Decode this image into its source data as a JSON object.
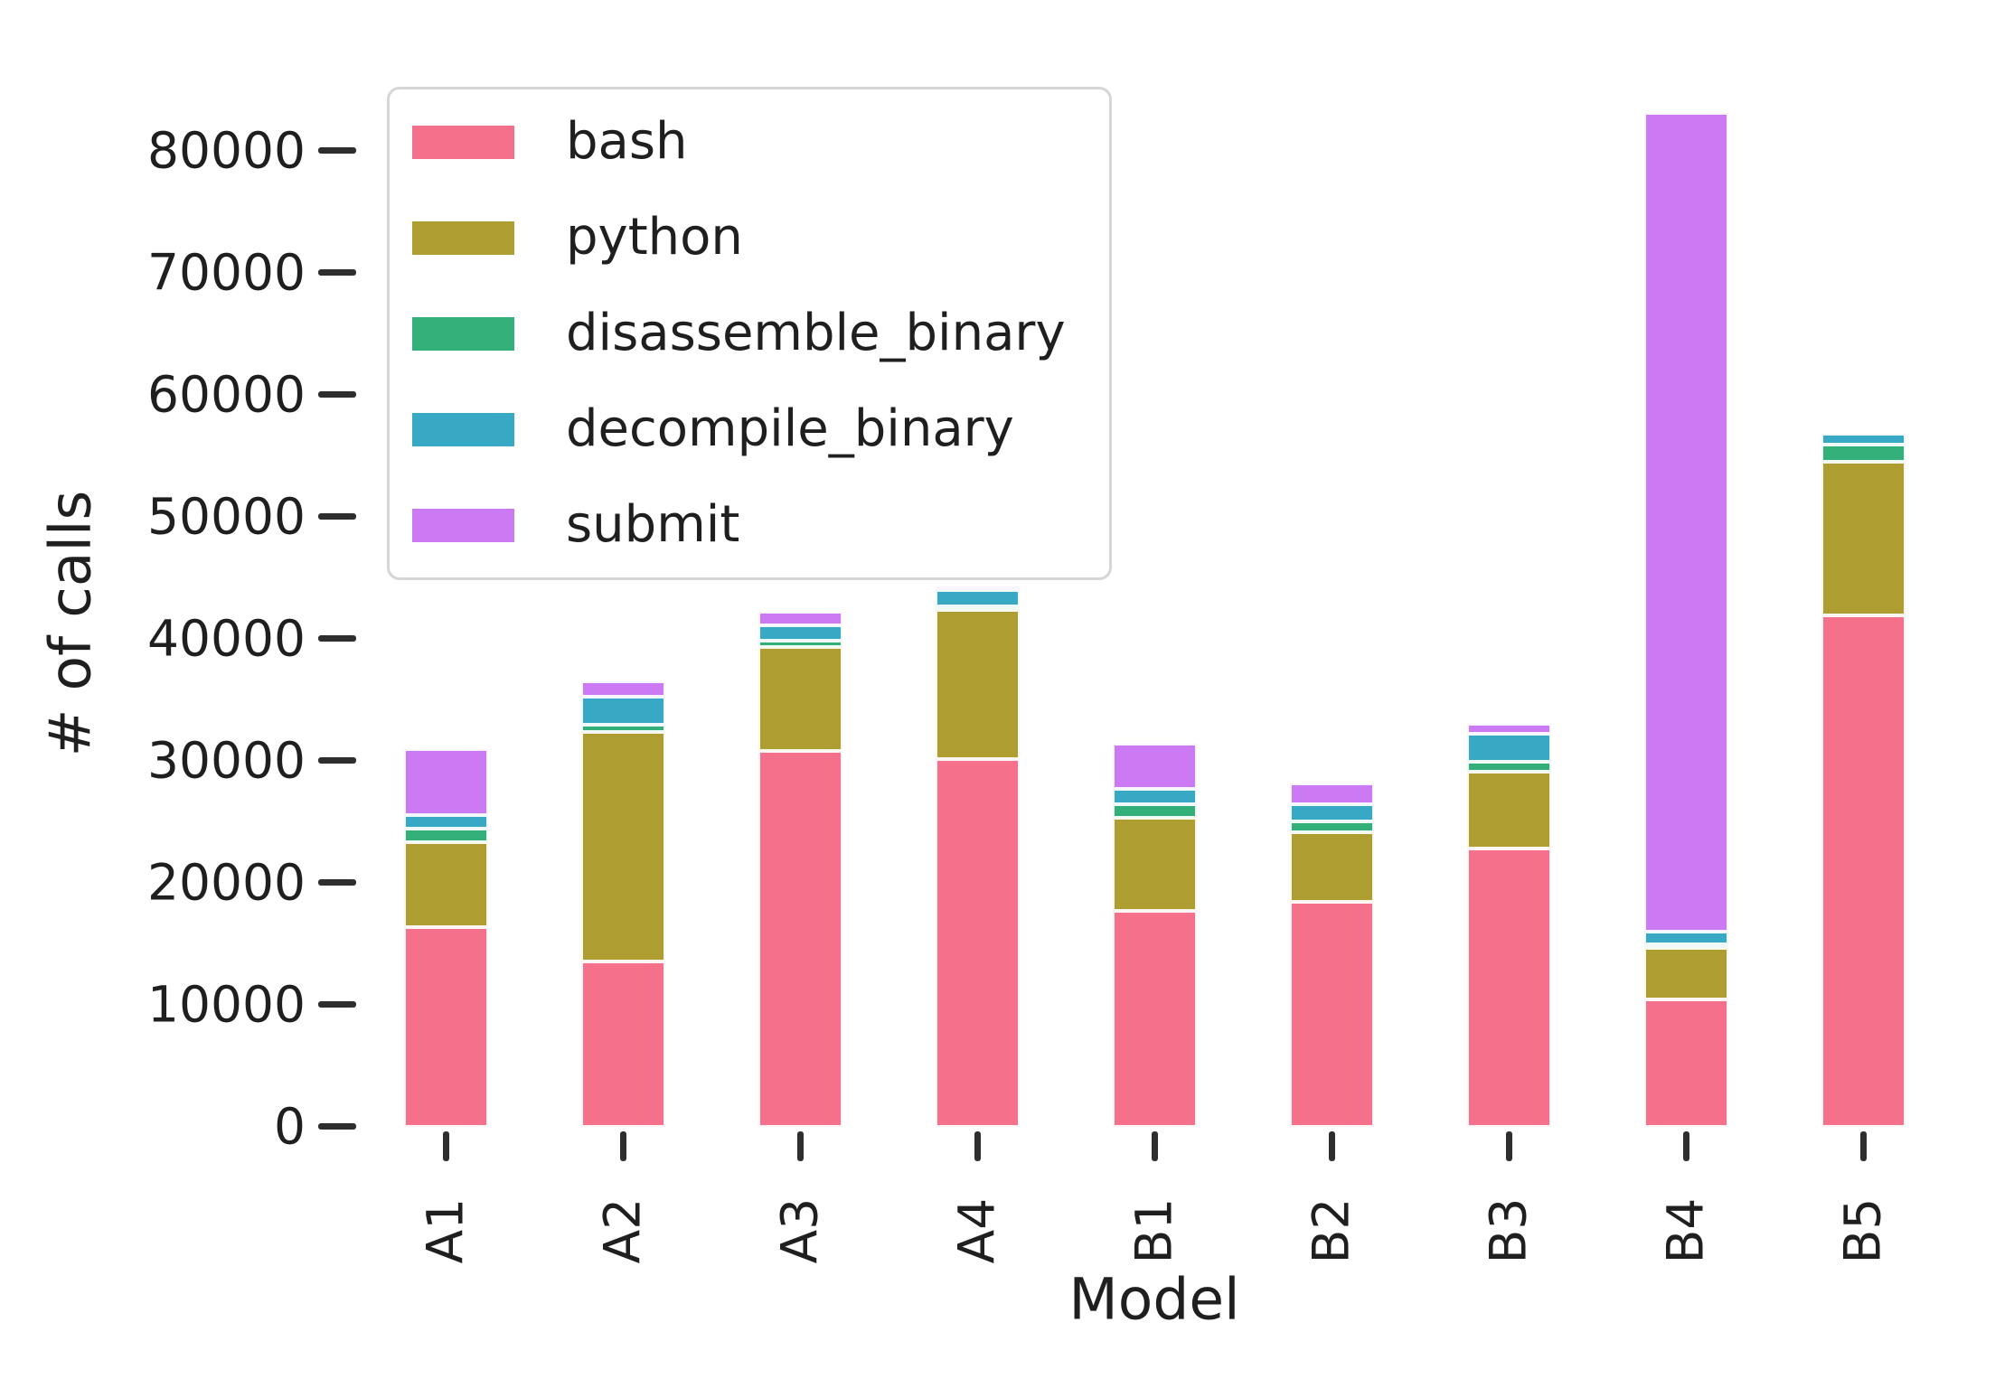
{
  "figure": {
    "background": "#ffffff",
    "text_color": "#1f1f1f",
    "tick_color": "#2e2e2e"
  },
  "chart_data": {
    "type": "bar",
    "stacked": true,
    "title": "",
    "xlabel": "Model",
    "ylabel": "# of calls",
    "categories": [
      "A1",
      "A2",
      "A3",
      "A4",
      "B1",
      "B2",
      "B3",
      "B4",
      "B5"
    ],
    "series": [
      {
        "name": "bash",
        "color": "#f5708a",
        "values": [
          16300,
          13500,
          30800,
          30100,
          17700,
          18400,
          22800,
          10400,
          41900
        ]
      },
      {
        "name": "python",
        "color": "#ae9d31",
        "values": [
          7000,
          18800,
          8500,
          12200,
          7600,
          5700,
          6300,
          4200,
          12600
        ]
      },
      {
        "name": "disassemble_binary",
        "color": "#33b07a",
        "values": [
          1100,
          600,
          500,
          200,
          1100,
          900,
          800,
          100,
          1400
        ]
      },
      {
        "name": "decompile_binary",
        "color": "#38a9c5",
        "values": [
          1100,
          2300,
          1300,
          1400,
          1300,
          1400,
          2300,
          1100,
          900
        ]
      },
      {
        "name": "submit",
        "color": "#cc7af4",
        "values": [
          5400,
          1300,
          1100,
          300,
          3700,
          1700,
          800,
          67100,
          0
        ]
      }
    ],
    "totals": [
      30900,
      36500,
      42200,
      44200,
      31400,
      28100,
      33000,
      82900,
      56800
    ],
    "ylim": [
      0,
      87000
    ],
    "yticks": [
      0,
      10000,
      20000,
      30000,
      40000,
      50000,
      60000,
      70000,
      80000
    ],
    "grid": false,
    "spines": false,
    "legend_position": "upper left",
    "legend_entries": [
      "bash",
      "python",
      "disassemble_binary",
      "decompile_binary",
      "submit"
    ]
  }
}
